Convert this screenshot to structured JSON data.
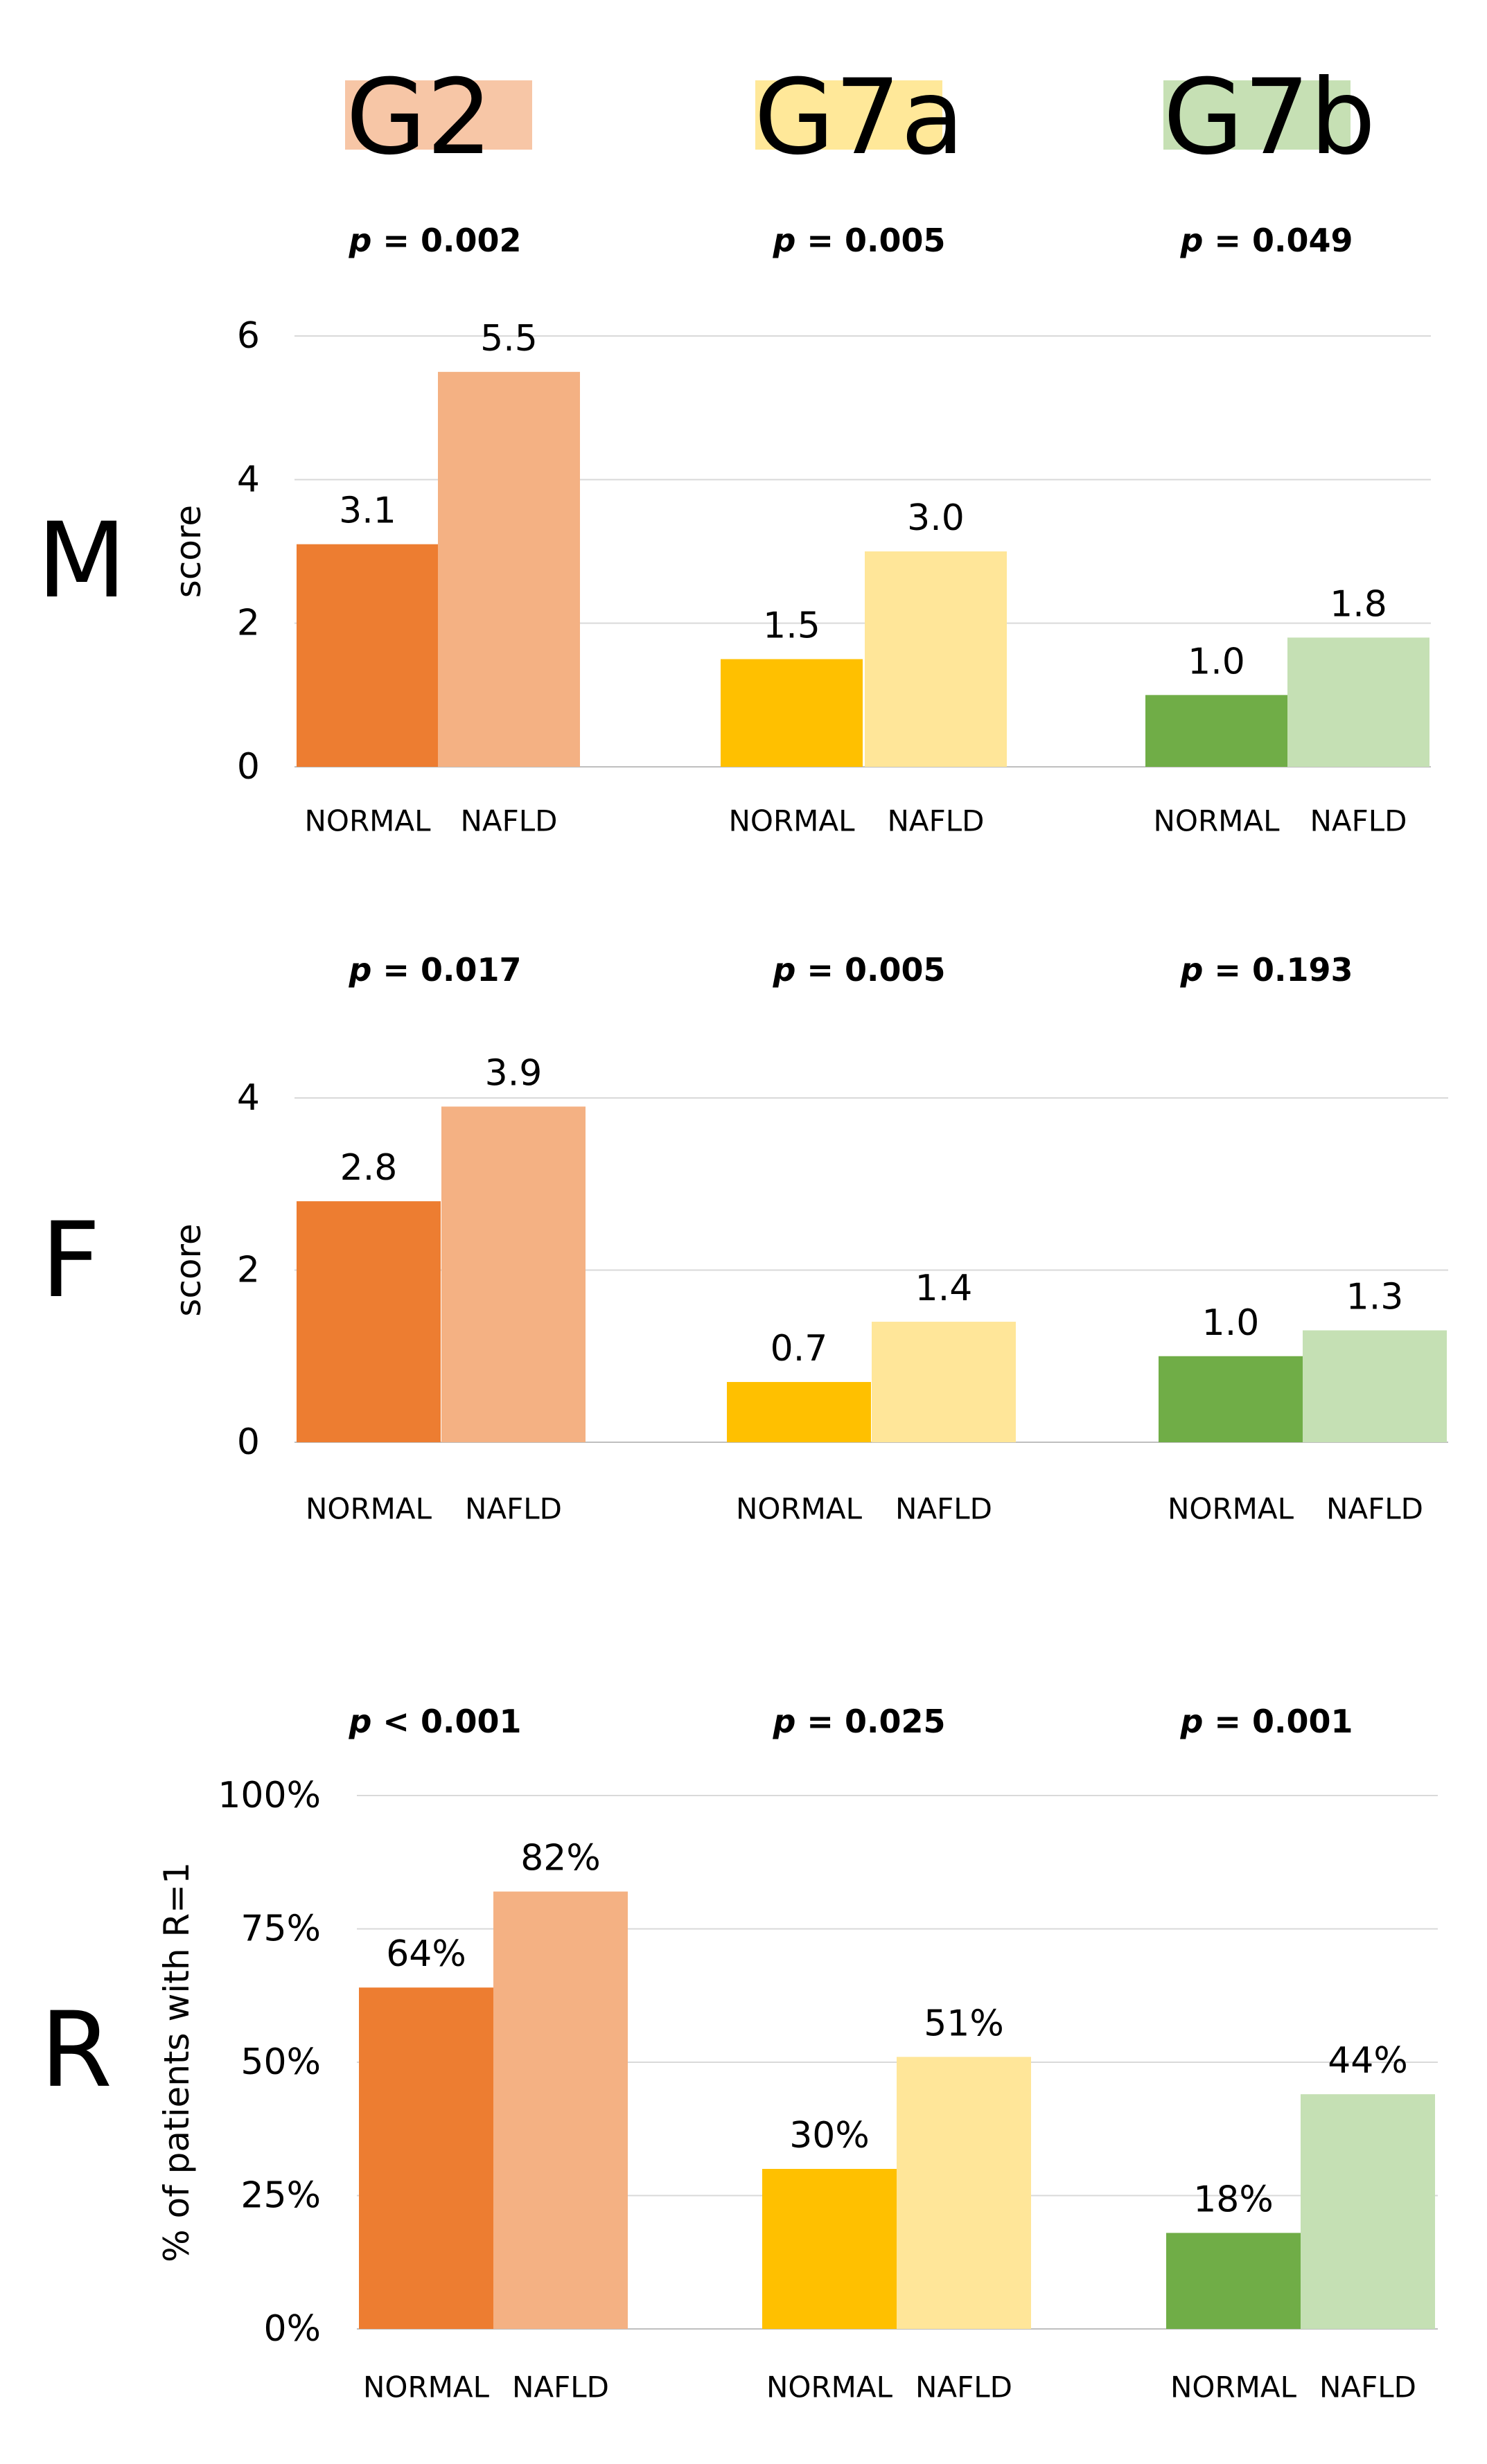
{
  "headers": [
    {
      "label": "G2",
      "color": "#F7C6A6"
    },
    {
      "label": "G7a",
      "color": "#FFE899"
    },
    {
      "label": "G7b",
      "color": "#C6E0B4"
    }
  ],
  "group_colors": {
    "G2": {
      "normal": "#ED7D31",
      "nafld": "#F4B183"
    },
    "G7a": {
      "normal": "#FFC000",
      "nafld": "#FFE699"
    },
    "G7b": {
      "normal": "#70AD47",
      "nafld": "#C5E0B4"
    }
  },
  "chart_data": [
    {
      "type": "bar",
      "panel_label": "M",
      "ylabel": "score",
      "ylim": [
        0,
        6
      ],
      "yticks": [
        "0",
        "2",
        "4",
        "6"
      ],
      "tick_values": [
        0,
        2,
        4,
        6
      ],
      "grid": true,
      "categories": [
        "NORMAL",
        "NAFLD"
      ],
      "groups": [
        {
          "name": "G2",
          "p_label": "= 0.002",
          "values": [
            3.1,
            5.5
          ],
          "value_labels": [
            "3.1",
            "5.5"
          ]
        },
        {
          "name": "G7a",
          "p_label": "= 0.005",
          "values": [
            1.5,
            3.0
          ],
          "value_labels": [
            "1.5",
            "3.0"
          ]
        },
        {
          "name": "G7b",
          "p_label": "= 0.049",
          "values": [
            1.0,
            1.8
          ],
          "value_labels": [
            "1.0",
            "1.8"
          ]
        }
      ]
    },
    {
      "type": "bar",
      "panel_label": "F",
      "ylabel": "score",
      "ylim": [
        0,
        4
      ],
      "yticks": [
        "0",
        "2",
        "4"
      ],
      "tick_values": [
        0,
        2,
        4
      ],
      "grid": true,
      "categories": [
        "NORMAL",
        "NAFLD"
      ],
      "groups": [
        {
          "name": "G2",
          "p_label": "= 0.017",
          "values": [
            2.8,
            3.9
          ],
          "value_labels": [
            "2.8",
            "3.9"
          ]
        },
        {
          "name": "G7a",
          "p_label": "= 0.005",
          "values": [
            0.7,
            1.4
          ],
          "value_labels": [
            "0.7",
            "1.4"
          ]
        },
        {
          "name": "G7b",
          "p_label": "= 0.193",
          "values": [
            1.0,
            1.3
          ],
          "value_labels": [
            "1.0",
            "1.3"
          ]
        }
      ]
    },
    {
      "type": "bar",
      "panel_label": "R",
      "ylabel": "% of patients with R=1",
      "ylim": [
        0,
        100
      ],
      "yticks": [
        "0%",
        "25%",
        "50%",
        "75%",
        "100%"
      ],
      "tick_values": [
        0,
        25,
        50,
        75,
        100
      ],
      "grid": true,
      "categories": [
        "NORMAL",
        "NAFLD"
      ],
      "groups": [
        {
          "name": "G2",
          "p_label": "< 0.001",
          "values": [
            64,
            82
          ],
          "value_labels": [
            "64%",
            "82%"
          ]
        },
        {
          "name": "G7a",
          "p_label": "= 0.025",
          "values": [
            30,
            51
          ],
          "value_labels": [
            "30%",
            "51%"
          ]
        },
        {
          "name": "G7b",
          "p_label": "= 0.001",
          "values": [
            18,
            44
          ],
          "value_labels": [
            "18%",
            "44%"
          ]
        }
      ]
    }
  ]
}
